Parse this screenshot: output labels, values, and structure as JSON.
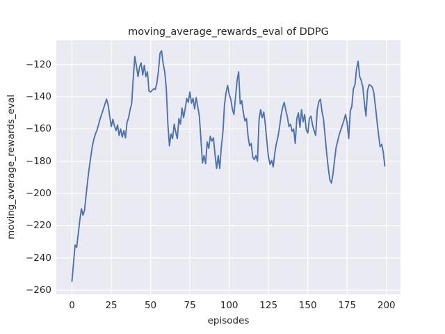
{
  "figure": {
    "title": "moving_average_rewards_eval of DDPG",
    "xlabel": "episodes",
    "ylabel": "moving_average_rewards_eval",
    "background_color": "#ffffff",
    "axes_background_color": "#eaeaf2",
    "grid_color": "#ffffff",
    "line_color": "#4c72b0",
    "text_color": "#262626"
  },
  "chart_data": {
    "type": "line",
    "title": "moving_average_rewards_eval of DDPG",
    "xlabel": "episodes",
    "ylabel": "moving_average_rewards_eval",
    "legend": false,
    "grid": true,
    "xlim": [
      -9.95,
      208.95
    ],
    "ylim": [
      -262.6,
      -105.0
    ],
    "xticks": [
      0,
      25,
      50,
      75,
      100,
      125,
      150,
      175,
      200
    ],
    "yticks": [
      -120,
      -140,
      -160,
      -180,
      -200,
      -220,
      -240,
      -260
    ],
    "x_note": "x = episode index, one point per episode from 0 to 199",
    "series": [
      {
        "name": "moving_average_rewards_eval",
        "color": "#4c72b0",
        "x_start": 0,
        "x_step": 1,
        "values": [
          -254.5,
          -243,
          -232,
          -233.5,
          -225,
          -216.5,
          -209.5,
          -213.5,
          -210.5,
          -201,
          -192,
          -184,
          -177,
          -170.5,
          -166,
          -163,
          -160.5,
          -157,
          -153.5,
          -150.5,
          -147.5,
          -144.5,
          -141.5,
          -145,
          -152,
          -158.5,
          -154,
          -158,
          -161,
          -157.5,
          -164,
          -160,
          -165,
          -161,
          -165.5,
          -156,
          -153,
          -148,
          -144,
          -128,
          -115,
          -121,
          -127.5,
          -121.5,
          -119,
          -126.5,
          -120.5,
          -127.5,
          -124.5,
          -136.5,
          -137,
          -136,
          -135,
          -135.5,
          -131.5,
          -124,
          -113,
          -111.5,
          -119.5,
          -124.5,
          -135,
          -157,
          -170.5,
          -163,
          -166,
          -157,
          -162,
          -166,
          -153.5,
          -157,
          -147,
          -153,
          -147.5,
          -141,
          -143.5,
          -137,
          -144,
          -141,
          -147.5,
          -140.5,
          -146,
          -152,
          -166,
          -181,
          -176.5,
          -181.5,
          -168,
          -172,
          -164.5,
          -167.5,
          -165.5,
          -176,
          -184.5,
          -176.5,
          -184.5,
          -171,
          -162,
          -145,
          -137.5,
          -133,
          -138.5,
          -141.5,
          -147.5,
          -151,
          -140.5,
          -130,
          -124.5,
          -144.5,
          -142.5,
          -150,
          -155,
          -153.5,
          -164.5,
          -170.5,
          -169,
          -177.5,
          -179,
          -176.5,
          -180,
          -154,
          -148,
          -153,
          -149.5,
          -157.5,
          -168,
          -177.5,
          -182,
          -179.5,
          -183.5,
          -175,
          -169,
          -165,
          -159,
          -151.5,
          -146.5,
          -143.5,
          -148.5,
          -152.5,
          -158.5,
          -157,
          -161.5,
          -160,
          -169,
          -153.5,
          -150,
          -159,
          -148,
          -155.5,
          -151,
          -160.5,
          -162.5,
          -153.5,
          -152,
          -157.5,
          -161,
          -164,
          -148,
          -143,
          -141.5,
          -149,
          -154,
          -164.5,
          -175,
          -184,
          -191.5,
          -193.5,
          -188,
          -179.5,
          -171.5,
          -167.5,
          -163.5,
          -160.5,
          -157.5,
          -154.5,
          -151,
          -156,
          -166,
          -149,
          -146,
          -135,
          -132.5,
          -122.5,
          -118,
          -127.5,
          -130,
          -134,
          -144,
          -152,
          -136,
          -132.5,
          -133,
          -134,
          -137.5,
          -146,
          -155,
          -163.5,
          -171,
          -169.5,
          -174.5,
          -183
        ]
      }
    ]
  }
}
